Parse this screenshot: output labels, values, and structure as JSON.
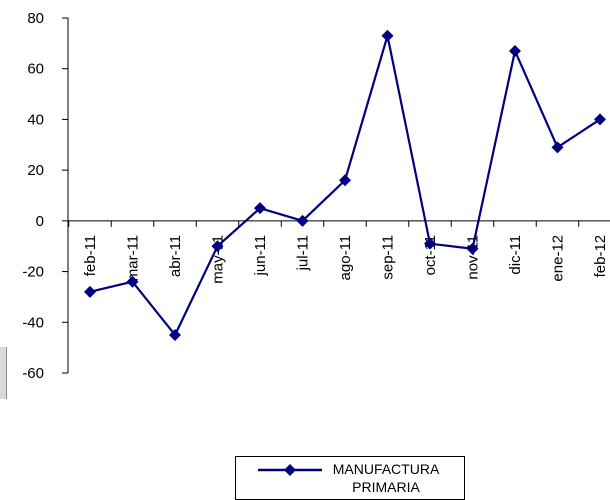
{
  "chart_data": {
    "type": "line",
    "title": "",
    "xlabel": "",
    "ylabel": "",
    "categories": [
      "feb-11",
      "mar-11",
      "abr-11",
      "may-11",
      "jun-11",
      "jul-11",
      "ago-11",
      "sep-11",
      "oct-11",
      "nov-11",
      "dic-11",
      "ene-12",
      "feb-12"
    ],
    "ylim": [
      -60,
      80
    ],
    "yticks": [
      80,
      60,
      40,
      20,
      0,
      -20,
      -40,
      -60
    ],
    "grid": false,
    "legend_position": "bottom",
    "series": [
      {
        "name": "MANUFACTURA PRIMARIA",
        "color": "#000080",
        "marker": "diamond",
        "values": [
          -28,
          -24,
          -45,
          -10,
          5,
          0,
          16,
          73,
          -9,
          -11,
          67,
          29,
          40
        ]
      }
    ]
  }
}
